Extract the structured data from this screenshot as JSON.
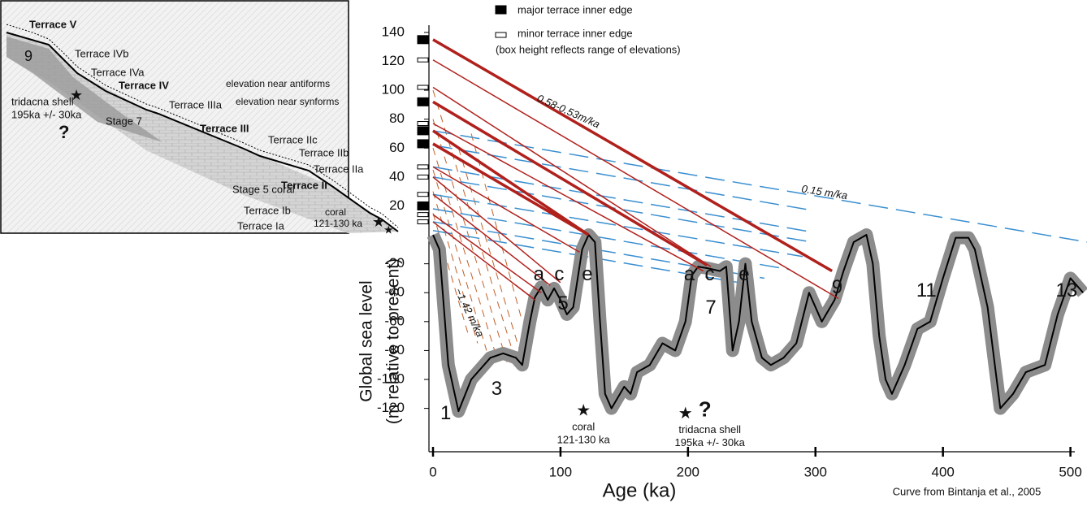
{
  "chart_data": {
    "type": "line",
    "x_label": "Age (ka)",
    "y_label": [
      "Global sea level",
      "(m relative to present)"
    ],
    "source": "Curve from Bintanja et al., 2005",
    "xlim": [
      0,
      513
    ],
    "ylim": [
      -150,
      145
    ],
    "xticks": [
      0,
      100,
      200,
      300,
      400,
      500
    ],
    "yticks": [
      140,
      120,
      100,
      80,
      60,
      40,
      20,
      -20,
      -40,
      -60,
      -80,
      -100,
      -120
    ],
    "line_color": "#000000",
    "band_color": "#8c8c8c",
    "x": [
      0,
      5,
      12,
      20,
      30,
      45,
      55,
      65,
      70,
      76,
      80,
      85,
      90,
      95,
      100,
      105,
      110,
      117,
      122,
      127,
      131,
      135,
      140,
      150,
      155,
      160,
      170,
      180,
      190,
      198,
      203,
      208,
      215,
      225,
      230,
      235,
      240,
      245,
      250,
      258,
      265,
      275,
      285,
      295,
      305,
      315,
      322,
      330,
      340,
      345,
      350,
      355,
      360,
      370,
      380,
      390,
      400,
      410,
      420,
      425,
      435,
      445,
      455,
      465,
      480,
      490,
      500,
      510
    ],
    "values": [
      0,
      -10,
      -90,
      -122,
      -100,
      -85,
      -82,
      -85,
      -90,
      -60,
      -43,
      -36,
      -45,
      -37,
      -45,
      -55,
      -50,
      -10,
      0,
      -5,
      -60,
      -110,
      -120,
      -105,
      -110,
      -95,
      -90,
      -75,
      -80,
      -60,
      -28,
      -22,
      -23,
      -25,
      -22,
      -80,
      -60,
      -20,
      -60,
      -85,
      -90,
      -85,
      -75,
      -40,
      -60,
      -45,
      -25,
      -5,
      0,
      -20,
      -70,
      -100,
      -110,
      -90,
      -65,
      -60,
      -30,
      -2,
      -2,
      -10,
      -50,
      -120,
      -110,
      -95,
      -90,
      -55,
      -30,
      -40
    ],
    "terraces": {
      "major": {
        "label": "major terrace inner edge",
        "color": "#000000",
        "values": [
          135,
          92,
          72,
          63,
          20
        ]
      },
      "minor": {
        "label": "minor terrace inner edge",
        "color": "#ffffff",
        "values": [
          121,
          102,
          77,
          47,
          40,
          28,
          14,
          9
        ]
      },
      "note": "(box height reflects range of elevations)"
    },
    "uplift_lines": {
      "label": "0.58-0.53m/ka",
      "color": "#b0201c",
      "lines": [
        {
          "heavy": true,
          "x": [
            0,
            313
          ],
          "values": [
            135,
            -25
          ]
        },
        {
          "heavy": false,
          "x": [
            0,
            318
          ],
          "values": [
            121,
            -44
          ]
        },
        {
          "heavy": false,
          "x": [
            0,
            218
          ],
          "values": [
            102,
            -22
          ]
        },
        {
          "heavy": true,
          "x": [
            0,
            215
          ],
          "values": [
            92,
            -21
          ]
        },
        {
          "heavy": false,
          "x": [
            0,
            212
          ],
          "values": [
            77,
            -25
          ]
        },
        {
          "heavy": true,
          "x": [
            0,
            122
          ],
          "values": [
            72,
            0
          ]
        },
        {
          "heavy": true,
          "x": [
            0,
            122
          ],
          "values": [
            63,
            0
          ]
        },
        {
          "heavy": false,
          "x": [
            0,
            115
          ],
          "values": [
            47,
            -12
          ]
        },
        {
          "heavy": false,
          "x": [
            0,
            100
          ],
          "values": [
            40,
            -33
          ]
        },
        {
          "heavy": false,
          "x": [
            0,
            92
          ],
          "values": [
            28,
            -35
          ]
        },
        {
          "heavy": false,
          "x": [
            0,
            85
          ],
          "values": [
            14,
            -40
          ]
        },
        {
          "heavy": false,
          "x": [
            0,
            80
          ],
          "values": [
            9,
            -45
          ]
        }
      ]
    },
    "low_uplift_lines": {
      "label": "0.15 m/ka",
      "color": "#3a8fd0",
      "lines": [
        {
          "x": [
            0,
            513
          ],
          "values": [
            72,
            -5
          ]
        },
        {
          "x": [
            0,
            297
          ],
          "values": [
            62,
            17
          ]
        },
        {
          "x": [
            0,
            297
          ],
          "values": [
            47,
            2
          ]
        },
        {
          "x": [
            0,
            297
          ],
          "values": [
            40,
            -5
          ]
        },
        {
          "x": [
            0,
            290
          ],
          "values": [
            28,
            -15
          ]
        },
        {
          "x": [
            0,
            280
          ],
          "values": [
            18,
            -24
          ]
        },
        {
          "x": [
            0,
            260
          ],
          "values": [
            9,
            -30
          ]
        },
        {
          "x": [
            0,
            240
          ],
          "values": [
            3,
            -33
          ]
        }
      ]
    },
    "high_uplift_lines": {
      "label": "~1.42 m/ka",
      "color": "#c2602a",
      "lines": [
        {
          "x": [
            0,
            65
          ],
          "values": [
            100,
            -88
          ]
        },
        {
          "x": [
            0,
            58
          ],
          "values": [
            80,
            -88
          ]
        },
        {
          "x": [
            0,
            50
          ],
          "values": [
            60,
            -85
          ]
        },
        {
          "x": [
            0,
            42
          ],
          "values": [
            45,
            -80
          ]
        },
        {
          "x": [
            0,
            35
          ],
          "values": [
            30,
            -75
          ]
        },
        {
          "x": [
            0,
            28
          ],
          "values": [
            15,
            -70
          ]
        },
        {
          "x": [
            20,
            68
          ],
          "values": [
            60,
            -80
          ]
        },
        {
          "x": [
            30,
            70
          ],
          "values": [
            70,
            -60
          ]
        }
      ]
    },
    "annotations": [
      {
        "text": "1",
        "x": 10,
        "y": -124
      },
      {
        "text": "3",
        "x": 50,
        "y": -107
      },
      {
        "text": "5",
        "x": 102,
        "y": -48
      },
      {
        "text": "7",
        "x": 218,
        "y": -51
      },
      {
        "text": "9",
        "x": 317,
        "y": -37
      },
      {
        "text": "11",
        "x": 387,
        "y": -39
      },
      {
        "text": "13",
        "x": 497,
        "y": -39
      },
      {
        "text": "a",
        "x": 83,
        "y": -28
      },
      {
        "text": "c",
        "x": 99,
        "y": -28
      },
      {
        "text": "e",
        "x": 121,
        "y": -28
      },
      {
        "text": "a",
        "x": 201,
        "y": -28
      },
      {
        "text": "c",
        "x": 217,
        "y": -28
      },
      {
        "text": "e",
        "x": 244,
        "y": -28
      }
    ],
    "events": [
      {
        "label": [
          "coral",
          "121-130 ka"
        ],
        "x": 118,
        "y": -122
      },
      {
        "label": [
          "tridacna shell",
          "195ka +/- 30ka"
        ],
        "x": 198,
        "y": -124,
        "mark": "?"
      }
    ]
  },
  "inset": {
    "labels": [
      "Terrace V",
      "9",
      "Terrace IVb",
      "Terrace IVa",
      "Terrace IV",
      "elevation near antiforms",
      "elevation near synforms",
      "tridacna shell",
      "195ka +/- 30ka",
      "?",
      "Stage 7",
      "Terrace IIIa",
      "Terrace III",
      "Terrace IIc",
      "Terrace IIb",
      "Terrace IIa",
      "Stage 5 coral",
      "Terrace II",
      "Terrace Ib",
      "coral",
      "121-130 ka",
      "Terrace Ia"
    ]
  }
}
